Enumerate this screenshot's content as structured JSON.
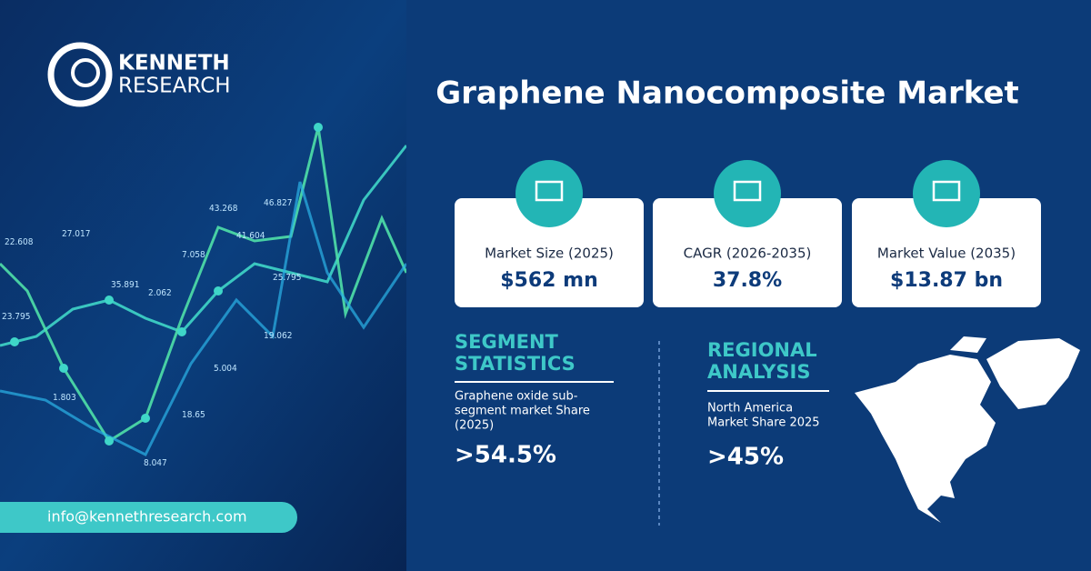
{
  "brand": {
    "line1": "KENNETH",
    "line2": "RESEARCH"
  },
  "title": "Graphene Nanocomposite Market",
  "stats": [
    {
      "label": "Market Size (2025)",
      "value": "$562 mn"
    },
    {
      "label": "CAGR (2026-2035)",
      "value": "37.8%"
    },
    {
      "label": "Market Value (2035)",
      "value": "$13.87 bn"
    }
  ],
  "segment": {
    "heading": [
      "SEGMENT",
      "STATISTICS"
    ],
    "text": [
      "Graphene oxide sub-",
      "segment market Share",
      "(2025)"
    ],
    "value": ">54.5%"
  },
  "regional": {
    "heading": [
      "REGIONAL",
      "ANALYSIS"
    ],
    "text": [
      "North America",
      "Market Share 2025"
    ],
    "value": ">45%"
  },
  "email": "info@kennethresearch.com",
  "background_labels": [
    "22.608",
    "27.017",
    "35.891",
    "23.795",
    "1.803",
    "2.062",
    "7.058",
    "43.268",
    "46.827",
    "41.604",
    "25.795",
    "18.65",
    "8.047",
    "5.004",
    "19.062"
  ]
}
